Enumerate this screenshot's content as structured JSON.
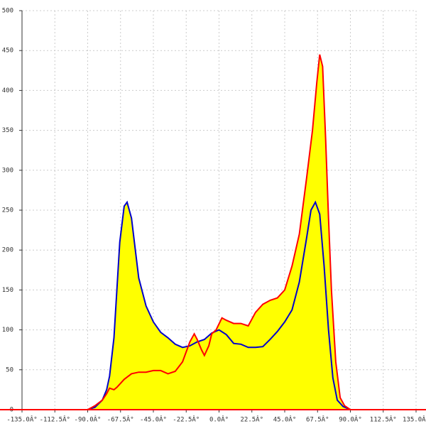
{
  "chart_data": {
    "type": "area",
    "xlim": [
      -135,
      135
    ],
    "ylim": [
      0,
      500
    ],
    "xticks": [
      {
        "value": -135,
        "label": "-135.0Â°"
      },
      {
        "value": -112.5,
        "label": "-112.5Â°"
      },
      {
        "value": -90,
        "label": "-90.0Â°"
      },
      {
        "value": -67.5,
        "label": "-67.5Â°"
      },
      {
        "value": -45,
        "label": "-45.0Â°"
      },
      {
        "value": -22.5,
        "label": "-22.5Â°"
      },
      {
        "value": 0,
        "label": "0.0Â°"
      },
      {
        "value": 22.5,
        "label": "22.5Â°"
      },
      {
        "value": 45,
        "label": "45.0Â°"
      },
      {
        "value": 67.5,
        "label": "67.5Â°"
      },
      {
        "value": 90,
        "label": "90.0Â°"
      },
      {
        "value": 112.5,
        "label": "112.5Â°"
      },
      {
        "value": 135,
        "label": "135.0Â°"
      }
    ],
    "yticks": [
      0,
      50,
      100,
      150,
      200,
      250,
      300,
      350,
      400,
      450,
      500
    ],
    "grid": true,
    "fill_color": "#ffff00",
    "series": [
      {
        "color": "#0000cc",
        "x": [
          -90,
          -85,
          -80,
          -77,
          -75,
          -72,
          -70,
          -68,
          -65,
          -63,
          -60,
          -57,
          -55,
          -50,
          -45,
          -40,
          -35,
          -30,
          -25,
          -20,
          -15,
          -10,
          -5,
          0,
          5,
          10,
          15,
          20,
          25,
          30,
          35,
          40,
          45,
          50,
          55,
          60,
          63,
          66,
          69,
          72,
          75,
          78,
          81,
          85,
          90
        ],
        "values": [
          0,
          3,
          12,
          25,
          42,
          90,
          150,
          210,
          255,
          260,
          240,
          195,
          165,
          130,
          110,
          97,
          90,
          82,
          78,
          80,
          85,
          88,
          96,
          100,
          94,
          83,
          82,
          78,
          78,
          79,
          88,
          98,
          110,
          125,
          160,
          215,
          250,
          260,
          245,
          180,
          100,
          40,
          12,
          4,
          0
        ]
      },
      {
        "color": "#ff0000",
        "x": [
          -90,
          -85,
          -80,
          -77,
          -75,
          -72,
          -70,
          -65,
          -60,
          -55,
          -50,
          -45,
          -40,
          -35,
          -30,
          -25,
          -20,
          -17,
          -15,
          -12,
          -10,
          -7,
          -5,
          -2,
          2,
          5,
          10,
          15,
          20,
          25,
          30,
          35,
          40,
          45,
          50,
          55,
          60,
          64,
          67,
          69,
          71,
          73,
          75,
          77,
          80,
          83,
          86,
          90
        ],
        "values": [
          0,
          5,
          12,
          20,
          27,
          25,
          28,
          38,
          45,
          47,
          47,
          49,
          49,
          45,
          48,
          60,
          85,
          95,
          88,
          75,
          68,
          80,
          95,
          100,
          115,
          112,
          108,
          108,
          105,
          122,
          132,
          137,
          140,
          150,
          180,
          220,
          290,
          350,
          410,
          445,
          430,
          340,
          240,
          150,
          60,
          15,
          5,
          0
        ]
      }
    ]
  }
}
